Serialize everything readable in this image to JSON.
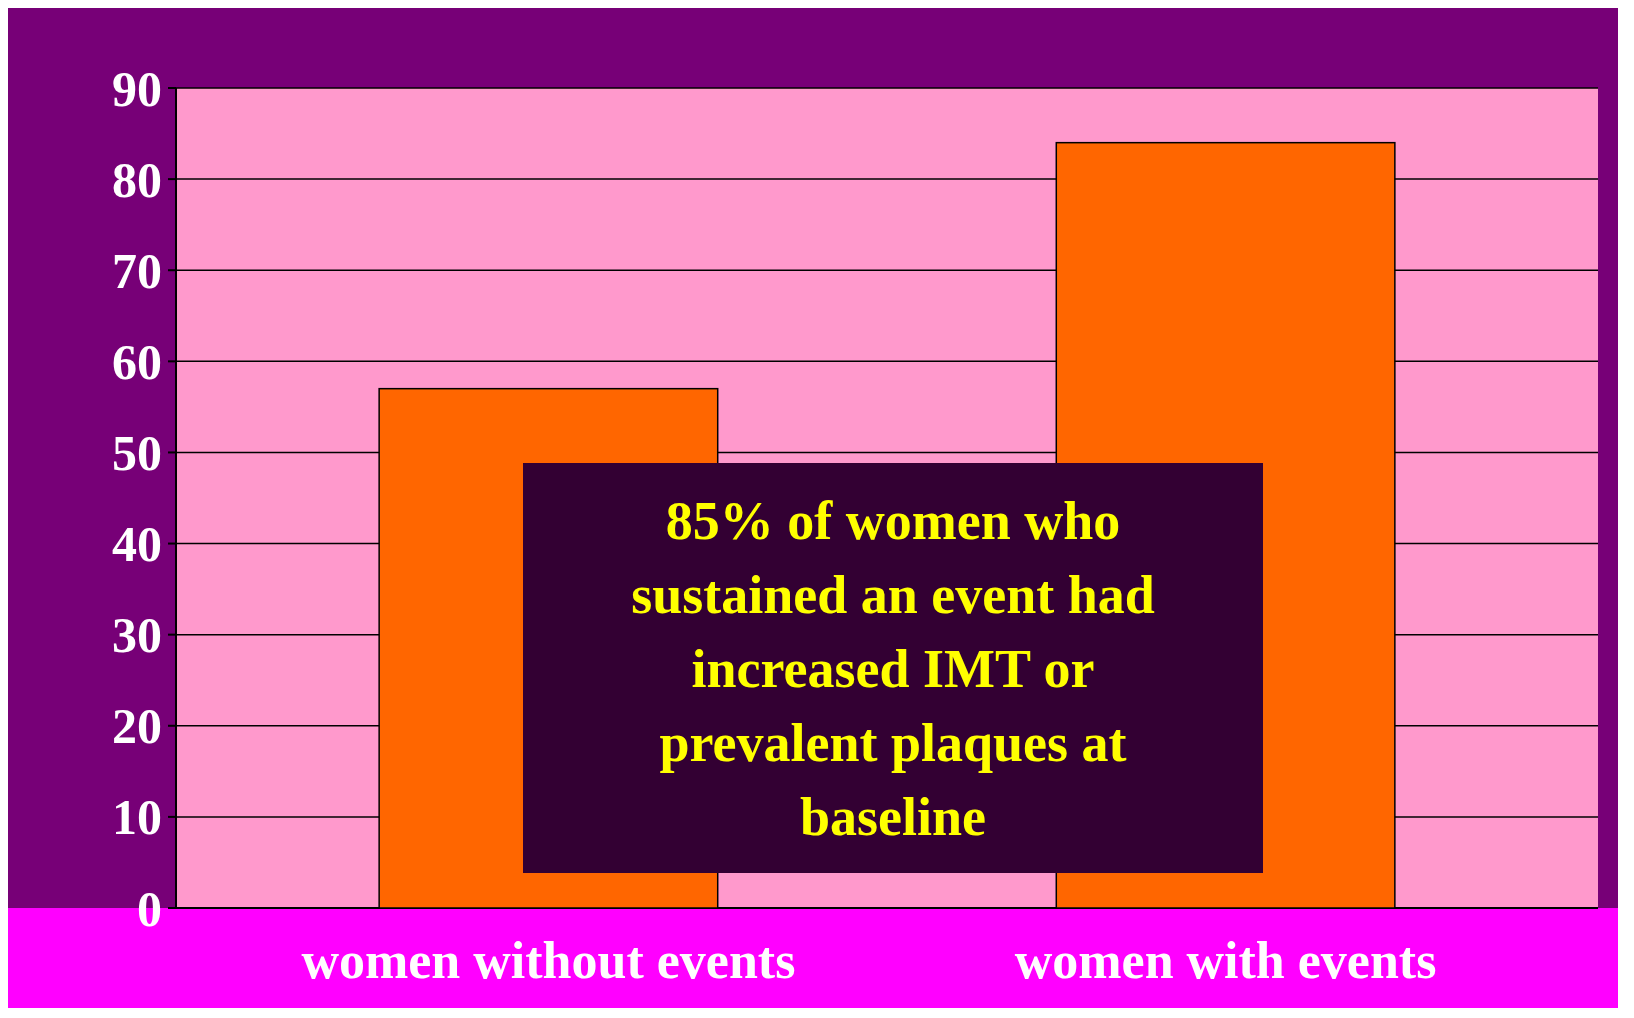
{
  "chart_data": {
    "type": "bar",
    "categories": [
      "women without events",
      "women with events"
    ],
    "values": [
      57,
      84
    ],
    "color": "#ff6600",
    "ylim": [
      0,
      90
    ],
    "yticks": [
      0,
      10,
      20,
      30,
      40,
      50,
      60,
      70,
      80,
      90
    ],
    "grid": "y",
    "annotations": [
      "85% of women who sustained an event had increased IMT or prevalent plaques at baseline"
    ]
  }
}
